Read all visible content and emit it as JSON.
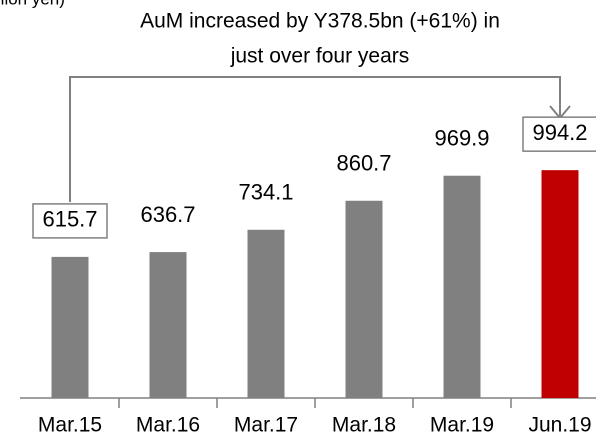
{
  "chart_data": {
    "type": "bar",
    "unit_label": "(billion yen)",
    "annotation": [
      "AuM increased by Y378.5bn (+61%) in",
      "just over four years"
    ],
    "categories": [
      "Mar.15",
      "Mar.16",
      "Mar.17",
      "Mar.18",
      "Mar.19",
      "Jun.19"
    ],
    "values": [
      615.7,
      636.7,
      734.1,
      860.7,
      969.9,
      994.2
    ],
    "colors": [
      "#808080",
      "#808080",
      "#808080",
      "#808080",
      "#808080",
      "#c00000"
    ],
    "ylim": [
      0,
      1200
    ]
  }
}
